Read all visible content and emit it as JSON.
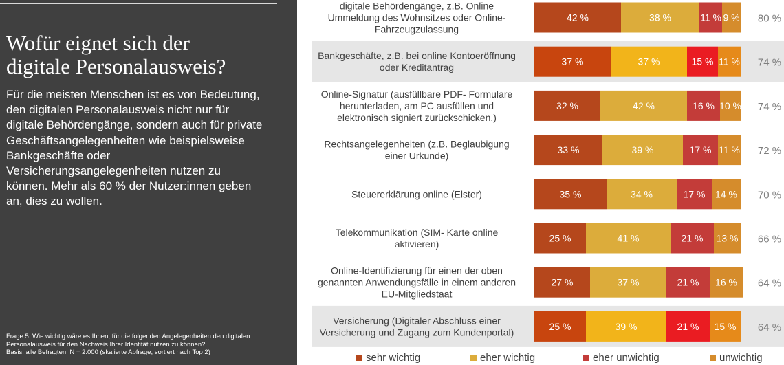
{
  "panel": {
    "heading": "Wofür eignet sich der\ndigitale Personalausweis?",
    "intro": "Für die meisten Menschen ist es von Bedeutung,\nden digitalen Personalausweis nicht nur für\ndigitale Behördengänge, sondern auch für private\nGeschäftsangelegenheiten wie beispielsweise\nBankgeschäfte oder\nVersicherungsangelegenheiten nutzen zu\nkönnen. Mehr als 60 % der Nutzer:innen geben\nan, dies zu wollen.",
    "footnote": "Frage 5: Wie wichtig wäre es Ihnen, für die folgenden Angelegenheiten den digitalen\nPersonalausweis für den Nachweis Ihrer Identität nutzen zu können?\nBasis: alle Befragten, N = 2.000 (skalierte Abfrage, sortiert nach Top 2)"
  },
  "chart_data": {
    "type": "bar",
    "orientation": "horizontal",
    "stacked": true,
    "value_suffix": " %",
    "categories": [
      [
        "digitale Behördengänge, z.B. Online",
        "Ummeldung des Wohnsitzes oder Online-",
        "Fahrzeugzulassung"
      ],
      [
        "Bankgeschäfte, z.B. bei online Kontoeröffnung",
        "oder Kreditantrag"
      ],
      [
        "Online-Signatur (ausfüllbare PDF- Formulare",
        "herunterladen, am PC ausfüllen und",
        "elektronisch signiert zurückschicken.)"
      ],
      [
        "Rechtsangelegenheiten  (z.B. Beglaubigung",
        "einer Urkunde)"
      ],
      [
        "Steuererklärung online (Elster)"
      ],
      [
        "Telekommunikation (SIM- Karte online",
        "aktivieren)"
      ],
      [
        "Online-Identifizierung für einen der oben",
        "genannten Anwendungsfälle in einem anderen",
        "EU-Mitgliedstaat"
      ],
      [
        "Versicherung (Digitaler Abschluss einer",
        "Versicherung und Zugang zum Kundenportal)"
      ]
    ],
    "series": [
      {
        "name": "sehr wichtig",
        "values": [
          42,
          37,
          32,
          33,
          35,
          25,
          27,
          25
        ]
      },
      {
        "name": "eher wichtig",
        "values": [
          38,
          37,
          42,
          39,
          34,
          41,
          37,
          39
        ]
      },
      {
        "name": "eher unwichtig",
        "values": [
          11,
          15,
          16,
          17,
          17,
          21,
          21,
          21
        ]
      },
      {
        "name": "unwichtig",
        "values": [
          9,
          11,
          10,
          11,
          14,
          13,
          16,
          15
        ]
      }
    ],
    "top2": [
      "80 %",
      "74 %",
      "74 %",
      "72 %",
      "70 %",
      "66 %",
      "64 %",
      "64 %"
    ],
    "highlighted_rows": [
      1,
      7
    ],
    "colors": {
      "series": [
        "#b5471c",
        "#dcac3b",
        "#c33c39",
        "#d58c2c"
      ],
      "series_highlight": [
        "#c8450e",
        "#f2b41a",
        "#ea1c22",
        "#e68a1a"
      ],
      "row_highlight_bg": "#e6e6e6",
      "label_text": "#404040",
      "top2_text": "#7f7f7f",
      "bar_label": "#ffffff"
    },
    "xlim": [
      0,
      100
    ],
    "legend_position": "bottom",
    "grid": false
  }
}
